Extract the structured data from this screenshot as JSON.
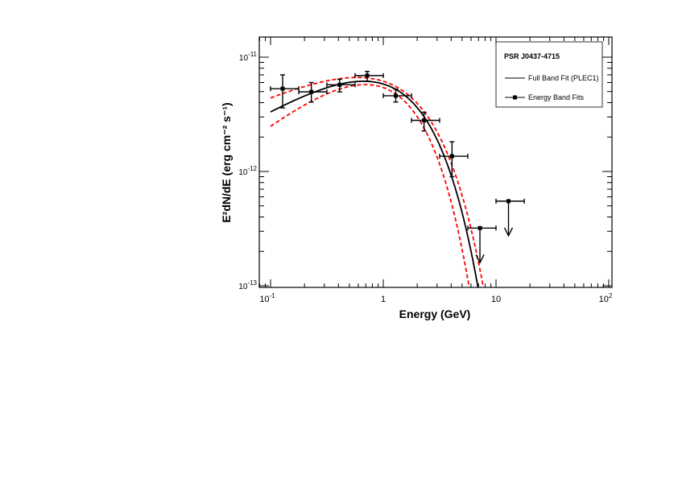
{
  "chart_data": {
    "type": "scatter",
    "title": "",
    "xlabel": "Energy (GeV)",
    "ylabel": "E²dN/dE (erg cm⁻² s⁻¹)",
    "xscale": "log",
    "yscale": "log",
    "xlim": [
      0.075,
      110
    ],
    "ylim": [
      9.7e-14,
      1.6e-11
    ],
    "x_ticks": [
      {
        "value": 0.1,
        "base": "10",
        "exp": "-1"
      },
      {
        "value": 1,
        "base": "1",
        "exp": ""
      },
      {
        "value": 10,
        "base": "10",
        "exp": ""
      },
      {
        "value": 100,
        "base": "10",
        "exp": "2"
      }
    ],
    "y_ticks": [
      {
        "value": 1e-11,
        "base": "10",
        "exp": "-11"
      },
      {
        "value": 1e-12,
        "base": "10",
        "exp": "-12"
      },
      {
        "value": 1e-13,
        "base": "10",
        "exp": "-13"
      }
    ],
    "grid": false,
    "legend": {
      "placement": "top-right",
      "title": "PSR J0437-4715",
      "entries": [
        "Full Band Fit (PLEC1)",
        "Energy Band Fits"
      ]
    },
    "model": {
      "name": "Full Band Fit (PLEC1)",
      "form": "K*E^(2-Gamma)*exp(-E/Ec)",
      "K": 1.41e-11,
      "Gamma": 1.41,
      "Ec": 1.13,
      "color": "#000000"
    },
    "model_band": {
      "color": "#ff0000",
      "upper": {
        "K": 1.306e-11,
        "Gamma": 1.56,
        "Ec": 1.33
      },
      "lower": {
        "K": 1.675e-11,
        "Gamma": 1.22,
        "Ec": 0.886
      }
    },
    "points": [
      {
        "x": 0.128,
        "xlo": 0.1,
        "xhi": 0.178,
        "y": 5.3e-12,
        "ylo": 3.6e-12,
        "yhi": 7e-12
      },
      {
        "x": 0.23,
        "xlo": 0.178,
        "xhi": 0.316,
        "y": 4.97e-12,
        "ylo": 4.05e-12,
        "yhi": 6e-12
      },
      {
        "x": 0.41,
        "xlo": 0.316,
        "xhi": 0.562,
        "y": 5.73e-12,
        "ylo": 4.97e-12,
        "yhi": 6.4e-12
      },
      {
        "x": 0.72,
        "xlo": 0.562,
        "xhi": 1.0,
        "y": 6.9e-12,
        "ylo": 6.18e-12,
        "yhi": 7.5e-12
      },
      {
        "x": 1.29,
        "xlo": 1.0,
        "xhi": 1.78,
        "y": 4.6e-12,
        "ylo": 4.05e-12,
        "yhi": 5.25e-12
      },
      {
        "x": 2.3,
        "xlo": 1.78,
        "xhi": 3.16,
        "y": 2.8e-12,
        "ylo": 2.26e-12,
        "yhi": 3.3e-12
      },
      {
        "x": 4.07,
        "xlo": 3.16,
        "xhi": 5.62,
        "y": 1.36e-12,
        "ylo": 9e-13,
        "yhi": 1.82e-12
      }
    ],
    "upper_limits": [
      {
        "x": 7.2,
        "xlo": 5.62,
        "xhi": 10.0,
        "y": 3.2e-13
      },
      {
        "x": 12.9,
        "xlo": 10.0,
        "xhi": 17.8,
        "y": 5.5e-13
      }
    ]
  }
}
